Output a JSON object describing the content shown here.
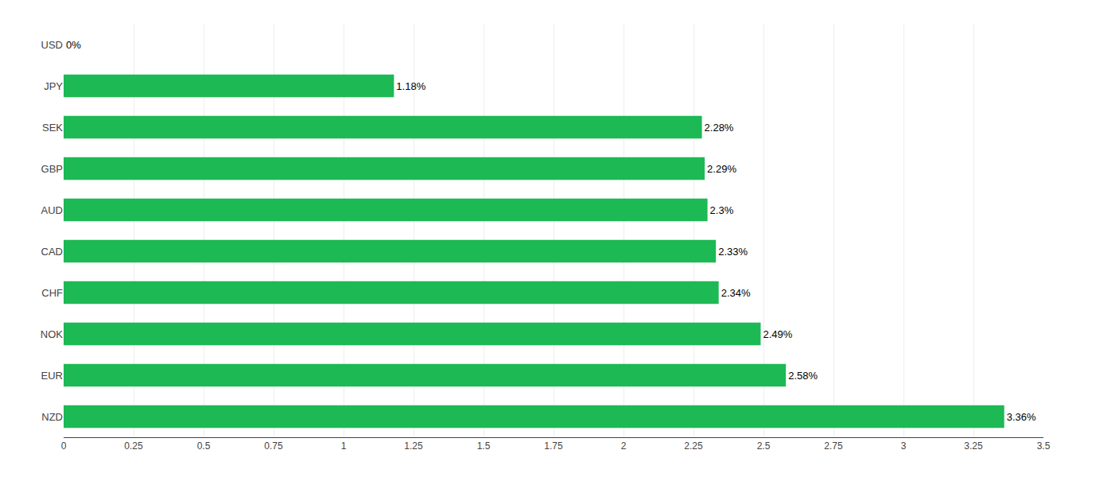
{
  "chart_data": {
    "type": "bar",
    "orientation": "horizontal",
    "categories": [
      "NZD",
      "EUR",
      "NOK",
      "CHF",
      "CAD",
      "AUD",
      "GBP",
      "SEK",
      "JPY",
      "USD"
    ],
    "values": [
      3.36,
      2.58,
      2.49,
      2.34,
      2.33,
      2.3,
      2.29,
      2.28,
      1.18,
      0.0
    ],
    "value_labels": [
      "3.36%",
      "2.58%",
      "2.49%",
      "2.34%",
      "2.33%",
      "2.3%",
      "2.29%",
      "2.28%",
      "1.18%",
      "0%"
    ],
    "data_labels": true,
    "color": "#1db954",
    "xlim": [
      0,
      3.5
    ],
    "xticks": [
      0,
      0.25,
      0.5,
      0.75,
      1,
      1.25,
      1.5,
      1.75,
      2,
      2.25,
      2.5,
      2.75,
      3,
      3.25,
      3.5
    ],
    "grid": true
  }
}
